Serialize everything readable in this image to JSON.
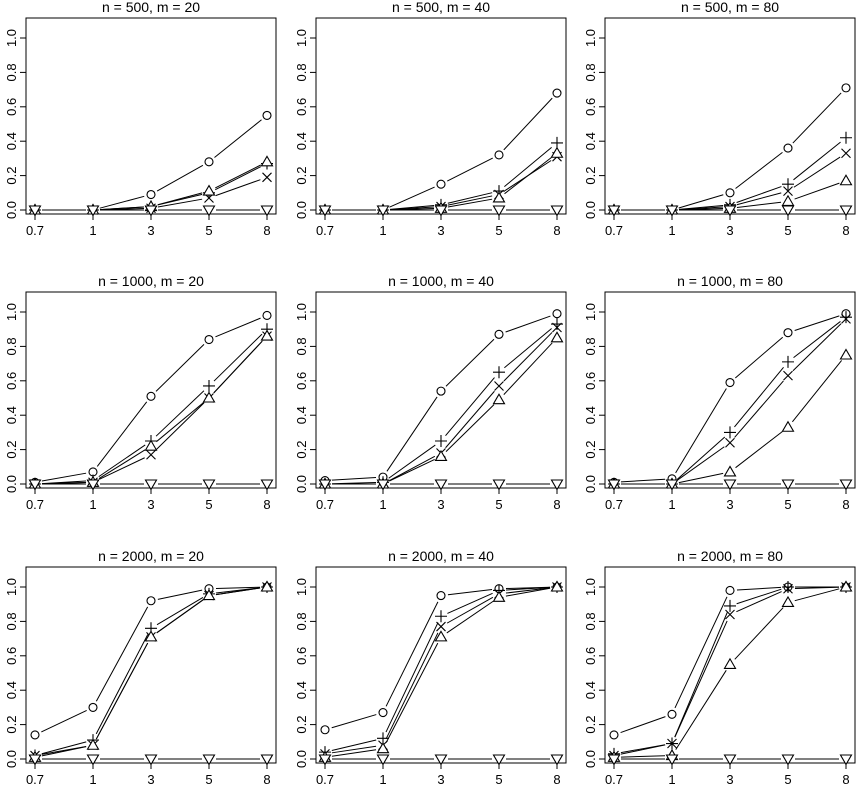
{
  "chart_data": [
    {
      "type": "line",
      "title": "n = 500, m = 20",
      "categories": [
        "0.7",
        "1",
        "3",
        "5",
        "8"
      ],
      "ylim": [
        0,
        1
      ],
      "yticks": [
        "0.0",
        "0.2",
        "0.4",
        "0.6",
        "0.8",
        "1.0"
      ],
      "series": [
        {
          "marker": "circle",
          "values": [
            0.0,
            0.0,
            0.09,
            0.28,
            0.55
          ]
        },
        {
          "marker": "plus",
          "values": [
            0.0,
            0.0,
            0.02,
            0.1,
            0.27
          ]
        },
        {
          "marker": "cross",
          "values": [
            0.0,
            0.0,
            0.01,
            0.07,
            0.19
          ]
        },
        {
          "marker": "triangle",
          "values": [
            0.0,
            0.0,
            0.02,
            0.11,
            0.28
          ]
        },
        {
          "marker": "triangle-down",
          "values": [
            0.0,
            0.0,
            0.0,
            0.0,
            0.0
          ]
        }
      ]
    },
    {
      "type": "line",
      "title": "n = 500, m = 40",
      "categories": [
        "0.7",
        "1",
        "3",
        "5",
        "8"
      ],
      "ylim": [
        0,
        1
      ],
      "yticks": [
        "0.0",
        "0.2",
        "0.4",
        "0.6",
        "0.8",
        "1.0"
      ],
      "series": [
        {
          "marker": "circle",
          "values": [
            0.0,
            0.0,
            0.15,
            0.32,
            0.68
          ]
        },
        {
          "marker": "plus",
          "values": [
            0.0,
            0.0,
            0.03,
            0.11,
            0.39
          ]
        },
        {
          "marker": "cross",
          "values": [
            0.0,
            0.0,
            0.02,
            0.09,
            0.31
          ]
        },
        {
          "marker": "triangle",
          "values": [
            0.0,
            0.0,
            0.01,
            0.07,
            0.33
          ]
        },
        {
          "marker": "triangle-down",
          "values": [
            0.0,
            0.0,
            0.0,
            0.0,
            0.0
          ]
        }
      ]
    },
    {
      "type": "line",
      "title": "n = 500, m = 80",
      "categories": [
        "0.7",
        "1",
        "3",
        "5",
        "8"
      ],
      "ylim": [
        0,
        1
      ],
      "yticks": [
        "0.0",
        "0.2",
        "0.4",
        "0.6",
        "0.8",
        "1.0"
      ],
      "series": [
        {
          "marker": "circle",
          "values": [
            0.0,
            0.0,
            0.1,
            0.36,
            0.71
          ]
        },
        {
          "marker": "plus",
          "values": [
            0.0,
            0.0,
            0.03,
            0.15,
            0.42
          ]
        },
        {
          "marker": "cross",
          "values": [
            0.0,
            0.0,
            0.02,
            0.11,
            0.33
          ]
        },
        {
          "marker": "triangle",
          "values": [
            0.0,
            0.0,
            0.01,
            0.05,
            0.17
          ]
        },
        {
          "marker": "triangle-down",
          "values": [
            0.0,
            0.0,
            0.0,
            0.0,
            0.0
          ]
        }
      ]
    },
    {
      "type": "line",
      "title": "n = 1000, m = 20",
      "categories": [
        "0.7",
        "1",
        "3",
        "5",
        "8"
      ],
      "ylim": [
        0,
        1
      ],
      "yticks": [
        "0.0",
        "0.2",
        "0.4",
        "0.6",
        "0.8",
        "1.0"
      ],
      "series": [
        {
          "marker": "circle",
          "values": [
            0.01,
            0.07,
            0.51,
            0.84,
            0.98
          ]
        },
        {
          "marker": "plus",
          "values": [
            0.0,
            0.02,
            0.25,
            0.57,
            0.9
          ]
        },
        {
          "marker": "cross",
          "values": [
            0.0,
            0.01,
            0.17,
            0.5,
            0.86
          ]
        },
        {
          "marker": "triangle",
          "values": [
            0.0,
            0.01,
            0.22,
            0.5,
            0.86
          ]
        },
        {
          "marker": "triangle-down",
          "values": [
            0.0,
            0.0,
            0.0,
            0.0,
            0.0
          ]
        }
      ]
    },
    {
      "type": "line",
      "title": "n = 1000, m = 40",
      "categories": [
        "0.7",
        "1",
        "3",
        "5",
        "8"
      ],
      "ylim": [
        0,
        1
      ],
      "yticks": [
        "0.0",
        "0.2",
        "0.4",
        "0.6",
        "0.8",
        "1.0"
      ],
      "series": [
        {
          "marker": "circle",
          "values": [
            0.02,
            0.04,
            0.54,
            0.87,
            0.99
          ]
        },
        {
          "marker": "plus",
          "values": [
            0.0,
            0.01,
            0.25,
            0.65,
            0.93
          ]
        },
        {
          "marker": "cross",
          "values": [
            0.0,
            0.0,
            0.18,
            0.57,
            0.91
          ]
        },
        {
          "marker": "triangle",
          "values": [
            0.0,
            0.0,
            0.16,
            0.49,
            0.85
          ]
        },
        {
          "marker": "triangle-down",
          "values": [
            0.0,
            0.0,
            0.0,
            0.0,
            0.0
          ]
        }
      ]
    },
    {
      "type": "line",
      "title": "n = 1000, m = 80",
      "categories": [
        "0.7",
        "1",
        "3",
        "5",
        "8"
      ],
      "ylim": [
        0,
        1
      ],
      "yticks": [
        "0.0",
        "0.2",
        "0.4",
        "0.6",
        "0.8",
        "1.0"
      ],
      "series": [
        {
          "marker": "circle",
          "values": [
            0.01,
            0.03,
            0.59,
            0.88,
            0.99
          ]
        },
        {
          "marker": "plus",
          "values": [
            0.0,
            0.0,
            0.3,
            0.71,
            0.97
          ]
        },
        {
          "marker": "cross",
          "values": [
            0.0,
            0.0,
            0.24,
            0.63,
            0.96
          ]
        },
        {
          "marker": "triangle",
          "values": [
            0.0,
            0.0,
            0.07,
            0.33,
            0.75
          ]
        },
        {
          "marker": "triangle-down",
          "values": [
            0.0,
            0.0,
            0.0,
            0.0,
            0.0
          ]
        }
      ]
    },
    {
      "type": "line",
      "title": "n = 2000, m = 20",
      "categories": [
        "0.7",
        "1",
        "3",
        "5",
        "8"
      ],
      "ylim": [
        0,
        1
      ],
      "yticks": [
        "0.0",
        "0.2",
        "0.4",
        "0.6",
        "0.8",
        "1.0"
      ],
      "series": [
        {
          "marker": "circle",
          "values": [
            0.14,
            0.3,
            0.92,
            0.99,
            1.0
          ]
        },
        {
          "marker": "plus",
          "values": [
            0.02,
            0.11,
            0.76,
            0.96,
            1.0
          ]
        },
        {
          "marker": "cross",
          "values": [
            0.02,
            0.08,
            0.71,
            0.95,
            1.0
          ]
        },
        {
          "marker": "triangle",
          "values": [
            0.01,
            0.08,
            0.71,
            0.95,
            1.0
          ]
        },
        {
          "marker": "triangle-down",
          "values": [
            0.0,
            0.0,
            0.0,
            0.0,
            0.0
          ]
        }
      ]
    },
    {
      "type": "line",
      "title": "n = 2000, m = 40",
      "categories": [
        "0.7",
        "1",
        "3",
        "5",
        "8"
      ],
      "ylim": [
        0,
        1
      ],
      "yticks": [
        "0.0",
        "0.2",
        "0.4",
        "0.6",
        "0.8",
        "1.0"
      ],
      "series": [
        {
          "marker": "circle",
          "values": [
            0.17,
            0.27,
            0.95,
            0.99,
            1.0
          ]
        },
        {
          "marker": "plus",
          "values": [
            0.04,
            0.12,
            0.83,
            0.98,
            1.0
          ]
        },
        {
          "marker": "cross",
          "values": [
            0.03,
            0.08,
            0.77,
            0.96,
            1.0
          ]
        },
        {
          "marker": "triangle",
          "values": [
            0.01,
            0.06,
            0.71,
            0.94,
            1.0
          ]
        },
        {
          "marker": "triangle-down",
          "values": [
            0.0,
            0.0,
            0.0,
            0.0,
            0.0
          ]
        }
      ]
    },
    {
      "type": "line",
      "title": "n = 2000, m = 80",
      "categories": [
        "0.7",
        "1",
        "3",
        "5",
        "8"
      ],
      "ylim": [
        0,
        1
      ],
      "yticks": [
        "0.0",
        "0.2",
        "0.4",
        "0.6",
        "0.8",
        "1.0"
      ],
      "series": [
        {
          "marker": "circle",
          "values": [
            0.14,
            0.26,
            0.98,
            1.0,
            1.0
          ]
        },
        {
          "marker": "plus",
          "values": [
            0.03,
            0.09,
            0.89,
            1.0,
            1.0
          ]
        },
        {
          "marker": "cross",
          "values": [
            0.02,
            0.09,
            0.84,
            0.99,
            1.0
          ]
        },
        {
          "marker": "triangle",
          "values": [
            0.01,
            0.02,
            0.55,
            0.91,
            1.0
          ]
        },
        {
          "marker": "triangle-down",
          "values": [
            0.0,
            0.0,
            0.0,
            0.0,
            0.0
          ]
        }
      ]
    }
  ]
}
